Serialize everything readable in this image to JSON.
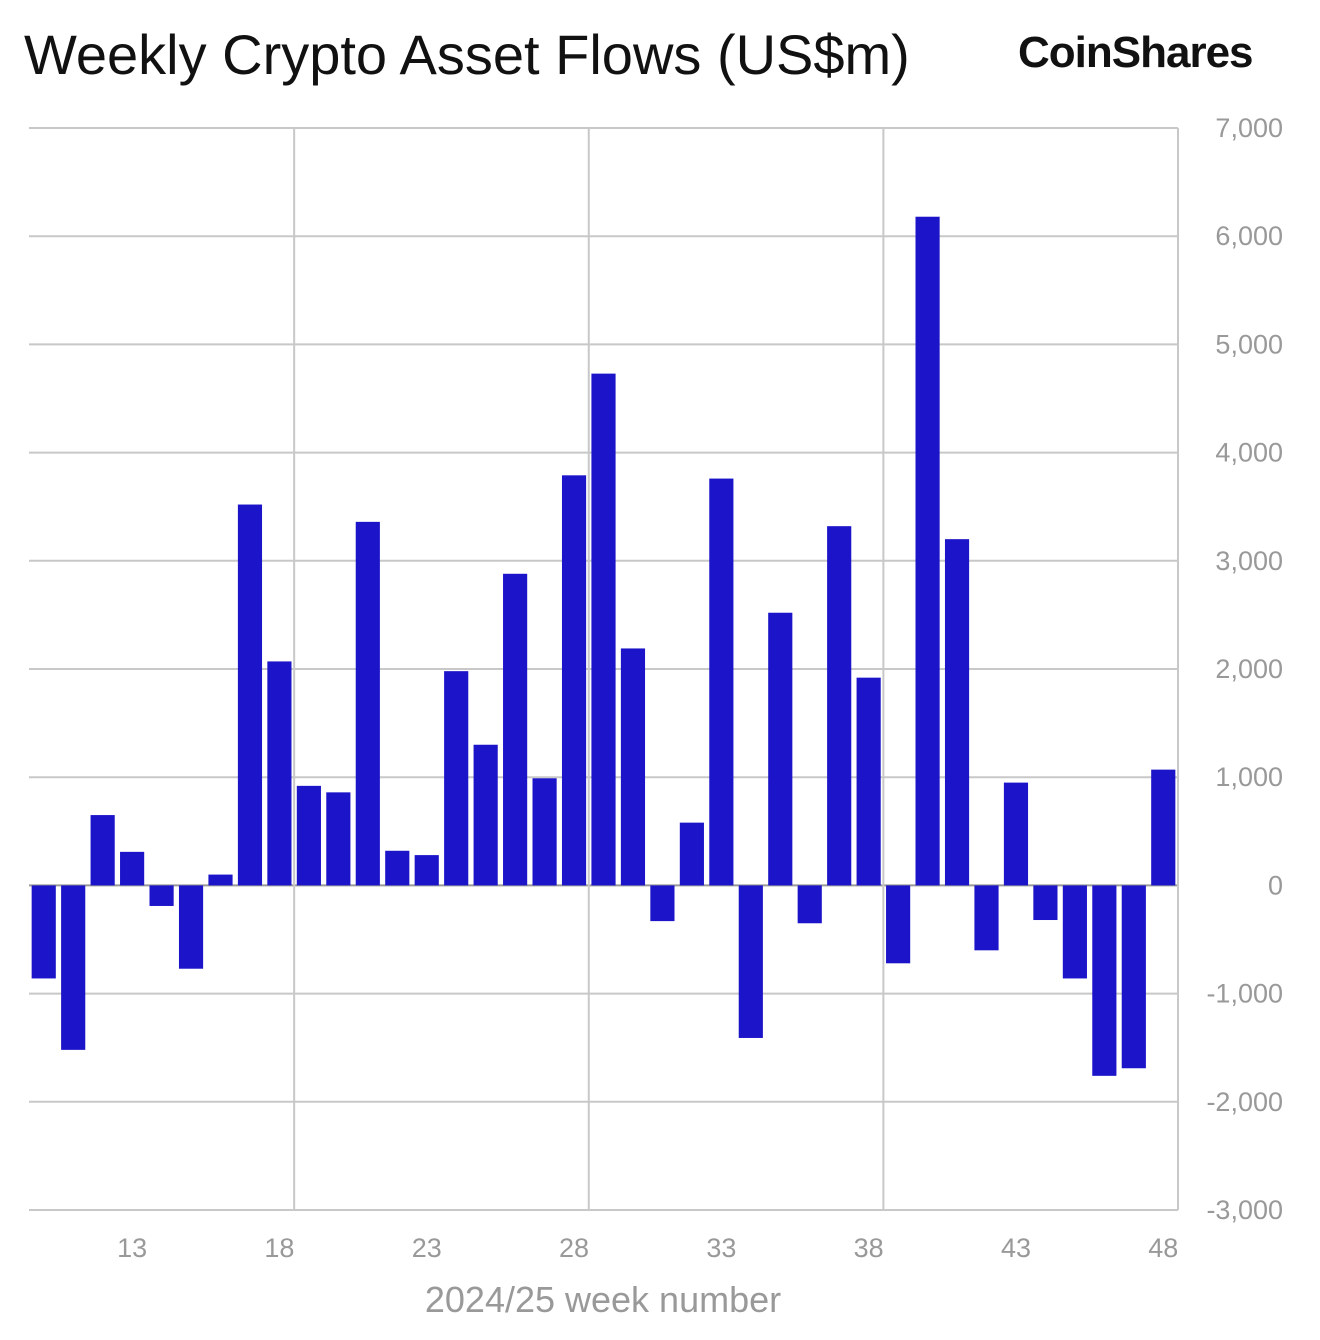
{
  "header": {
    "title": "Weekly Crypto Asset Flows (US$m)",
    "brand": "CoinShares"
  },
  "chart_data": {
    "type": "bar",
    "title": "Weekly Crypto Asset Flows (US$m)",
    "xlabel": "2024/25 week number",
    "ylabel": "",
    "ylim": [
      -3000,
      7000
    ],
    "yticks": [
      7000,
      6000,
      5000,
      4000,
      3000,
      2000,
      1000,
      0,
      -1000,
      -2000,
      -3000
    ],
    "ytick_labels": [
      "7,000",
      "6,000",
      "5,000",
      "4,000",
      "3,000",
      "2,000",
      "1,000",
      "0",
      "-1,000",
      "-2,000",
      "-3,000"
    ],
    "xtick_labels": [
      "13",
      "18",
      "23",
      "28",
      "33",
      "38",
      "43",
      "48"
    ],
    "categories": [
      "10",
      "11",
      "12",
      "13",
      "14",
      "15",
      "16",
      "17",
      "18",
      "19",
      "20",
      "21",
      "22",
      "23",
      "24",
      "25",
      "26",
      "27",
      "28",
      "29",
      "30",
      "31",
      "32",
      "33",
      "34",
      "35",
      "36",
      "37",
      "38",
      "39",
      "40",
      "41",
      "42",
      "43",
      "44",
      "45",
      "46",
      "47",
      "48"
    ],
    "values": [
      -860,
      -1520,
      650,
      310,
      -190,
      -770,
      100,
      3520,
      2070,
      920,
      860,
      3360,
      320,
      280,
      1980,
      1300,
      2880,
      990,
      3790,
      4730,
      2190,
      -330,
      580,
      3760,
      -1410,
      2520,
      -350,
      3320,
      1920,
      -720,
      6180,
      3200,
      -600,
      950,
      -320,
      -860,
      -1760,
      -1690,
      1070
    ],
    "bar_color": "#1c14c8",
    "grid": true,
    "y_axis_side": "right"
  }
}
